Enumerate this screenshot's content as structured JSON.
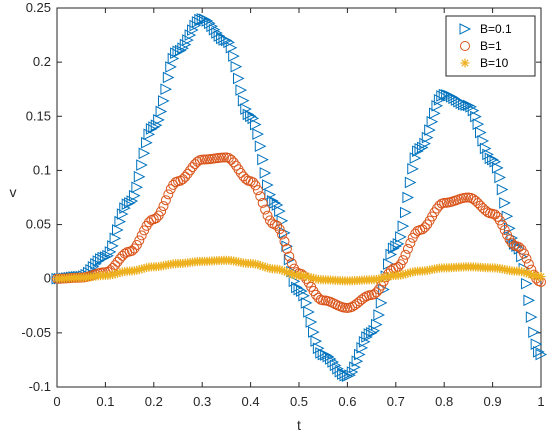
{
  "chart_data": {
    "type": "scatter",
    "title": "",
    "xlabel": "t",
    "ylabel": "v",
    "xlim": [
      0,
      1
    ],
    "ylim": [
      -0.1,
      0.25
    ],
    "grid": false,
    "legend_position": "top-right",
    "x_ticks": [
      "0",
      "0.1",
      "0.2",
      "0.3",
      "0.4",
      "0.5",
      "0.6",
      "0.7",
      "0.8",
      "0.9",
      "1"
    ],
    "y_ticks": [
      "-0.1",
      "-0.05",
      "0",
      "0.05",
      "0.1",
      "0.15",
      "0.2",
      "0.25"
    ],
    "x": [
      0,
      0.05,
      0.1,
      0.15,
      0.2,
      0.25,
      0.3,
      0.35,
      0.4,
      0.45,
      0.5,
      0.55,
      0.6,
      0.65,
      0.7,
      0.75,
      0.8,
      0.85,
      0.9,
      0.95,
      1.0
    ],
    "series": [
      {
        "name": "B=0.1",
        "marker": "triangle-right",
        "color": "#0072BD",
        "values": [
          0,
          0.002,
          0.02,
          0.07,
          0.14,
          0.21,
          0.24,
          0.22,
          0.15,
          0.07,
          -0.01,
          -0.07,
          -0.09,
          -0.05,
          0.03,
          0.12,
          0.17,
          0.16,
          0.11,
          0.03,
          -0.07
        ]
      },
      {
        "name": "B=1",
        "marker": "circle",
        "color": "#D95319",
        "values": [
          0,
          0.001,
          0.006,
          0.025,
          0.055,
          0.09,
          0.11,
          0.112,
          0.09,
          0.05,
          0.005,
          -0.02,
          -0.027,
          -0.015,
          0.01,
          0.045,
          0.07,
          0.075,
          0.06,
          0.03,
          -0.003
        ]
      },
      {
        "name": "B=10",
        "marker": "asterisk",
        "color": "#EDB120",
        "values": [
          0,
          0.001,
          0.003,
          0.007,
          0.011,
          0.014,
          0.016,
          0.017,
          0.014,
          0.009,
          0.003,
          -0.001,
          -0.002,
          -0.001,
          0.003,
          0.007,
          0.01,
          0.011,
          0.01,
          0.007,
          0.002
        ]
      }
    ]
  }
}
